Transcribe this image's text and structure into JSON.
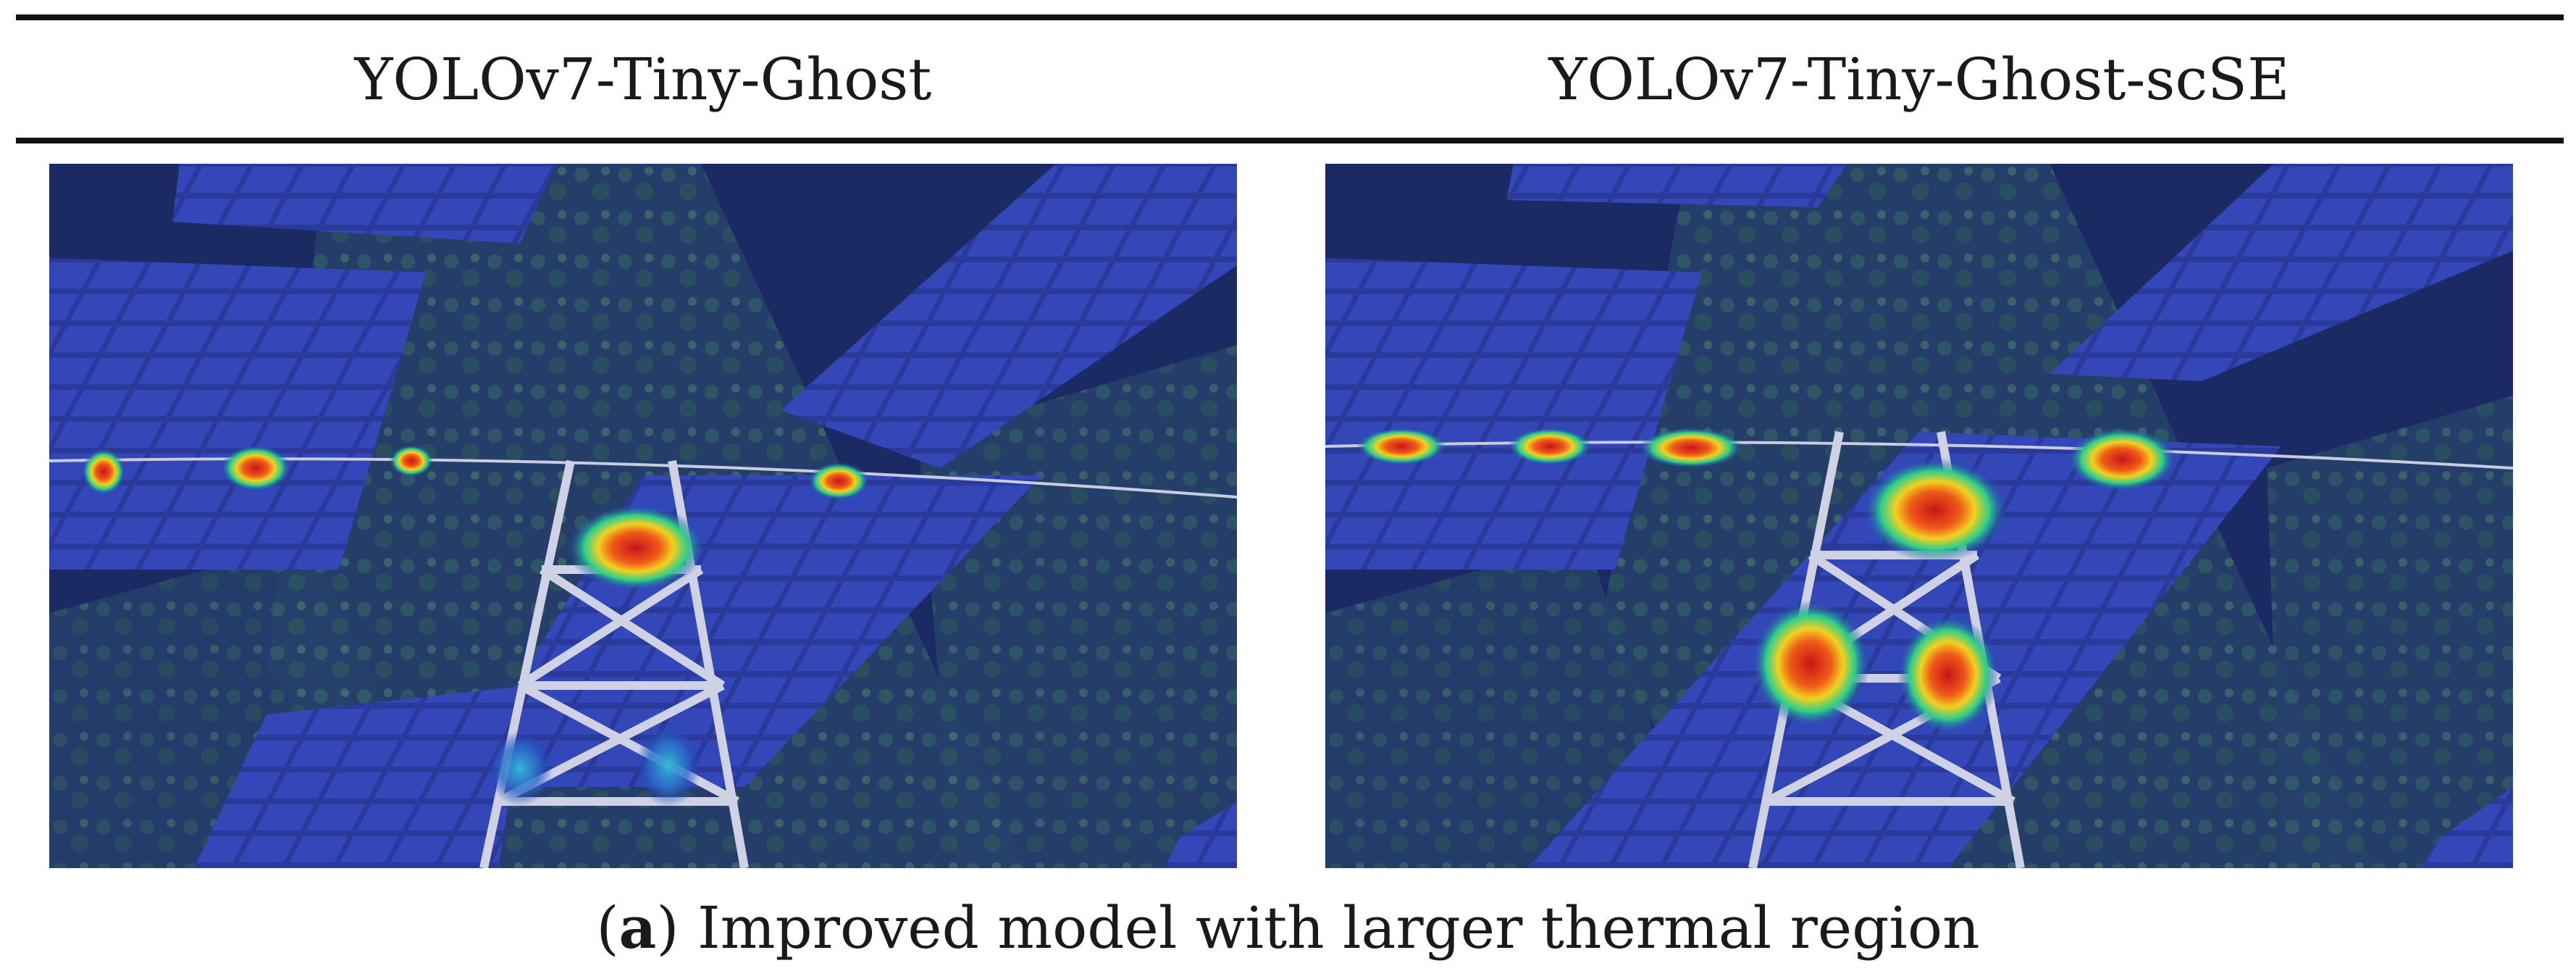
{
  "figure": {
    "columns": [
      {
        "title": "YOLOv7-Tiny-Ghost"
      },
      {
        "title": "YOLOv7-Tiny-Ghost-scSE"
      }
    ],
    "caption": {
      "open": "(",
      "letter": "a",
      "close": ")",
      "text": " Improved model with larger thermal region"
    }
  },
  "colors": {
    "rule": "#111111",
    "overlay_base": "#1e2a6b",
    "heat_core": "#d0141a",
    "heat_mid": "#f2d11f",
    "heat_edge": "#22c6b0"
  }
}
